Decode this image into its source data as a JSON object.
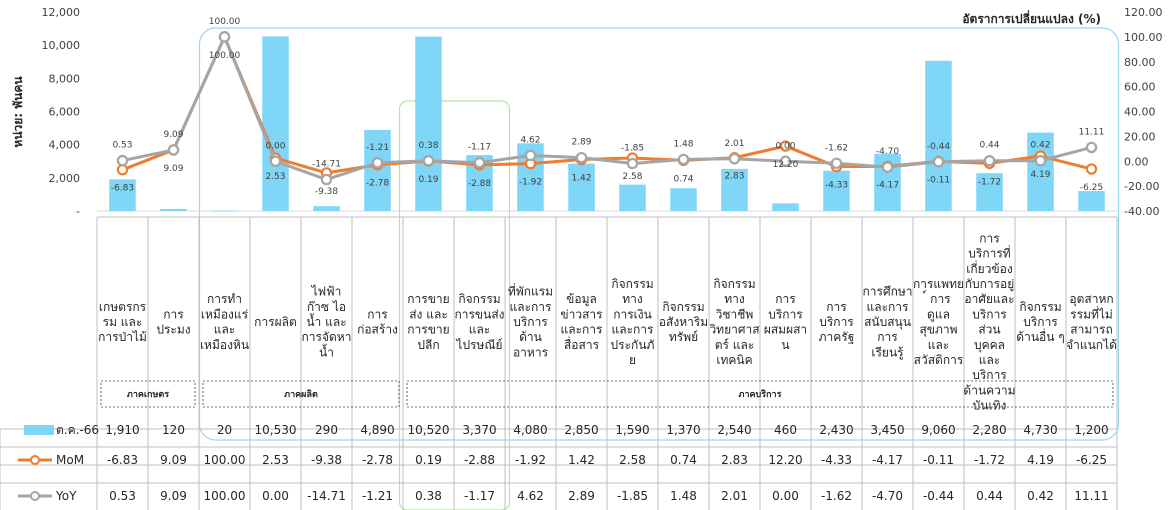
{
  "chart_data": {
    "type": "bar",
    "title": "",
    "ylabel_left": "หน่วย: พันคน",
    "ylabel_right": "อัตราการเปลี่ยนแปลง (%)",
    "y_left_ticks": [
      "-",
      "2,000",
      "4,000",
      "6,000",
      "8,000",
      "10,000",
      "12,000"
    ],
    "y_right_ticks": [
      "-40.00",
      "-20.00",
      "0.00",
      "20.00",
      "40.00",
      "60.00",
      "80.00",
      "100.00",
      "120.00"
    ],
    "ylim_left": [
      0,
      12000
    ],
    "ylim_right": [
      -40,
      120
    ],
    "categories": [
      [
        "เกษตรกร",
        "รม และ",
        "การป่าไม้"
      ],
      [
        "การ",
        "ประมง"
      ],
      [
        "การทำ",
        "เหมืองแร่",
        "และ",
        "เหมืองหิน"
      ],
      [
        "การผลิต"
      ],
      [
        "ไฟฟ้า",
        "ก๊าซ ไอ",
        "น้ำ และ",
        "การจัดหา",
        "น้ำ"
      ],
      [
        "การ",
        "ก่อสร้าง"
      ],
      [
        "การขาย",
        "ส่ง และ",
        "การขาย",
        "ปลีก"
      ],
      [
        "กิจกรรม",
        "การขนส่ง",
        "และ",
        "ไปรษณีย์"
      ],
      [
        "ที่พักแรม",
        "และการ",
        "บริการ",
        "ด้าน",
        "อาหาร"
      ],
      [
        "ข้อมูล",
        "ข่าวสาร",
        "และการ",
        "สื่อสาร"
      ],
      [
        "กิจกรรม",
        "ทาง",
        "การเงิน",
        "และการ",
        "ประกันภั",
        "ย"
      ],
      [
        "กิจกรรม",
        "อสังหาริม",
        "ทรัพย์"
      ],
      [
        "กิจกรรม",
        "ทาง",
        "วิชาชีพ",
        "วิทยาศาส",
        "ตร์ และ",
        "เทคนิค"
      ],
      [
        "การ",
        "บริการ",
        "ผสมผสา",
        "น"
      ],
      [
        "การ",
        "บริการ",
        "ภาครัฐ"
      ],
      [
        "การศึกษา",
        "และการ",
        "สนับสนุน",
        "การ",
        "เรียนรู้"
      ],
      [
        "การแพทย",
        "์ การ",
        "ดูแล",
        "สุขภาพ",
        "และ",
        "สวัสดิการ"
      ],
      [
        "การ",
        "บริการที่",
        "เกี่ยวข้อง",
        "กับการอยู่",
        "อาศัยและ",
        "บริการ",
        "ส่วน",
        "บุคคล",
        "และ",
        "บริการ",
        "ด้านความ",
        "บันเทิง"
      ],
      [
        "กิจกรรม",
        "บริการ",
        "ด้านอื่น ๆ"
      ],
      [
        "อุตสาหก",
        "รรมที่ไม่",
        "สามารถ",
        "จำแนกได้"
      ]
    ],
    "groups": [
      {
        "label": "ภาคเกษตร",
        "from": 0,
        "to": 1
      },
      {
        "label": "ภาคผลิต",
        "from": 2,
        "to": 7
      },
      {
        "label": "ภาคบริการ",
        "from": 6,
        "to": 19
      }
    ],
    "series": [
      {
        "name": "ต.ค.-66",
        "kind": "bar",
        "axis": "left",
        "color": "#7fd6f7",
        "values": [
          1910,
          120,
          20,
          10530,
          290,
          4890,
          10520,
          3370,
          4080,
          2850,
          1590,
          1370,
          2540,
          460,
          2430,
          3450,
          9060,
          2280,
          4730,
          1200
        ],
        "labels": [
          "1,910",
          "120",
          "20",
          "10,530",
          "290",
          "4,890",
          "10,520",
          "3,370",
          "4,080",
          "2,850",
          "1,590",
          "1,370",
          "2,540",
          "460",
          "2,430",
          "3,450",
          "9,060",
          "2,280",
          "4,730",
          "1,200"
        ]
      },
      {
        "name": "MoM",
        "kind": "line",
        "axis": "right",
        "color": "#ed7d31",
        "values": [
          -6.83,
          9.09,
          100.0,
          2.53,
          -9.38,
          -2.78,
          0.19,
          -2.88,
          -1.92,
          1.42,
          2.58,
          0.74,
          2.83,
          12.2,
          -4.33,
          -4.17,
          -0.11,
          -1.72,
          4.19,
          -6.25
        ],
        "labels": [
          "-6.83",
          "9.09",
          "100.00",
          "2.53",
          "-9.38",
          "-2.78",
          "0.19",
          "-2.88",
          "-1.92",
          "1.42",
          "2.58",
          "0.74",
          "2.83",
          "12.20",
          "-4.33",
          "-4.17",
          "-0.11",
          "-1.72",
          "4.19",
          "-6.25"
        ]
      },
      {
        "name": "YoY",
        "kind": "line",
        "axis": "right",
        "color": "#a5a5a5",
        "values": [
          0.53,
          9.09,
          100.0,
          0.0,
          -14.71,
          -1.21,
          0.38,
          -1.17,
          4.62,
          2.89,
          -1.85,
          1.48,
          2.01,
          0.0,
          -1.62,
          -4.7,
          -0.44,
          0.44,
          0.42,
          11.11
        ],
        "labels": [
          "0.53",
          "9.09",
          "100.00",
          "0.00",
          "-14.71",
          "-1.21",
          "0.38",
          "-1.17",
          "4.62",
          "2.89",
          "-1.85",
          "1.48",
          "2.01",
          "0.00",
          "-1.62",
          "-4.70",
          "-0.44",
          "0.44",
          "0.42",
          "11.11"
        ]
      }
    ],
    "grid": false,
    "legend": "data-table-bottom"
  }
}
